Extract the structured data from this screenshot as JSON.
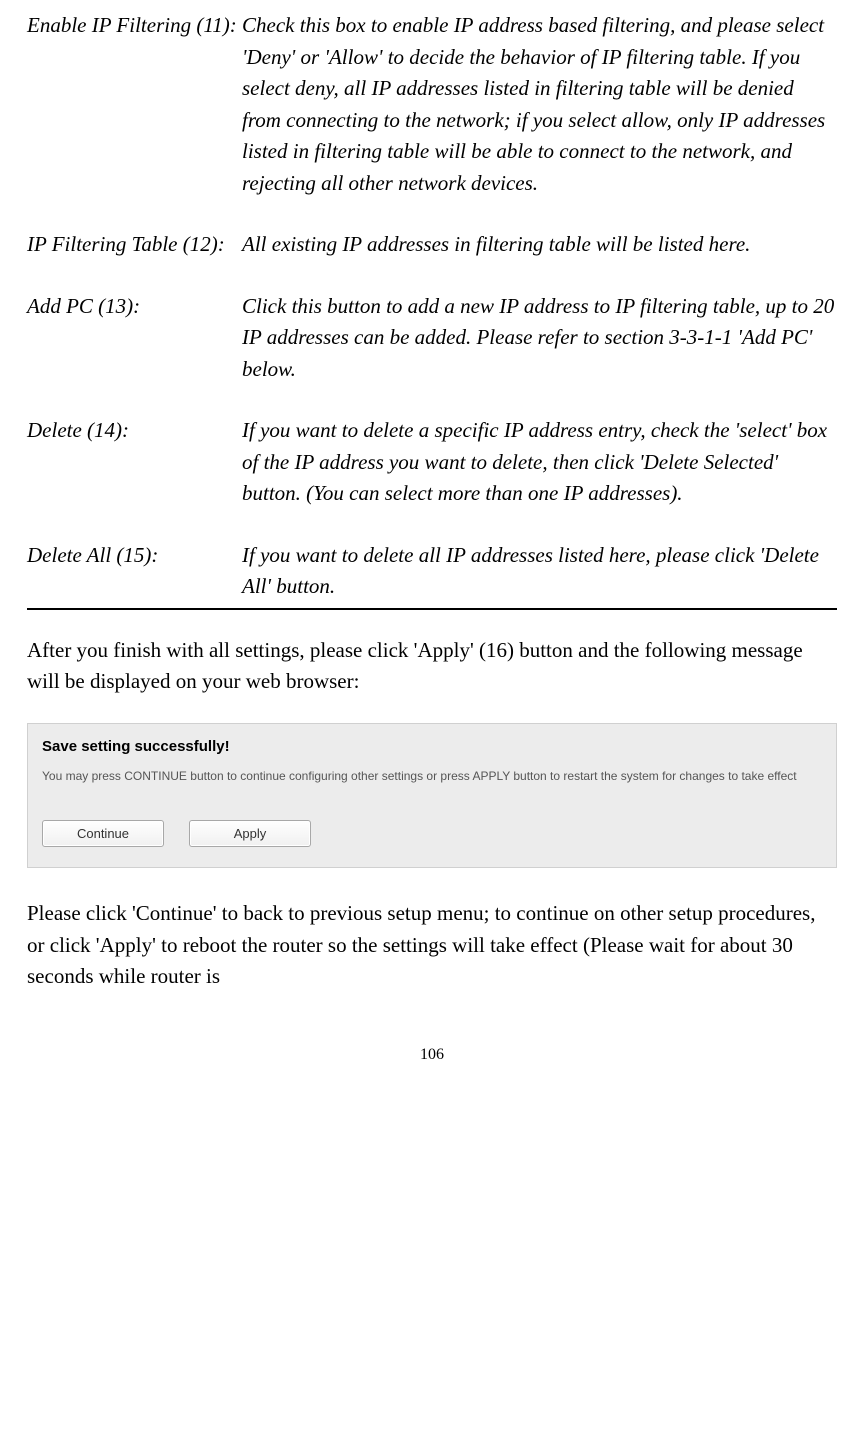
{
  "definitions": [
    {
      "term": "Enable IP Filtering (11):",
      "desc": "Check this box to enable IP address based filtering, and please select 'Deny' or 'Allow' to decide the behavior of IP filtering table. If you select deny, all IP addresses listed in filtering table will be denied from connecting to the network; if you select allow, only IP addresses listed in filtering table will be able to connect to the network, and rejecting all other network devices."
    },
    {
      "term": "IP Filtering Table (12):",
      "desc": "All existing IP addresses in filtering table will be listed here."
    },
    {
      "term": "Add PC (13):",
      "desc": "Click this button to add a new IP address to IP filtering table, up to 20 IP addresses can be added. Please refer to section 3-3-1-1 'Add PC' below."
    },
    {
      "term": "Delete (14):",
      "desc": "If you want to delete a specific IP address entry, check the 'select' box of the IP address you want to delete, then click 'Delete Selected' button. (You can select more than one IP addresses)."
    },
    {
      "term": "Delete All (15):",
      "desc": "If you want to delete all IP addresses listed here, please click 'Delete All' button."
    }
  ],
  "para1": "After you finish with all settings, please click 'Apply' (16) button and the following message will be displayed on your web browser:",
  "screenshot": {
    "title": "Save setting successfully!",
    "desc": "You may press CONTINUE button to continue configuring other settings or press APPLY button to restart the system for changes to take effect",
    "continue_btn": "Continue",
    "apply_btn": "Apply"
  },
  "para2": "Please click 'Continue' to back to previous setup menu; to continue on other setup procedures, or click 'Apply' to reboot the router so the settings will take effect (Please wait for about 30 seconds while router is",
  "page_number": "106"
}
